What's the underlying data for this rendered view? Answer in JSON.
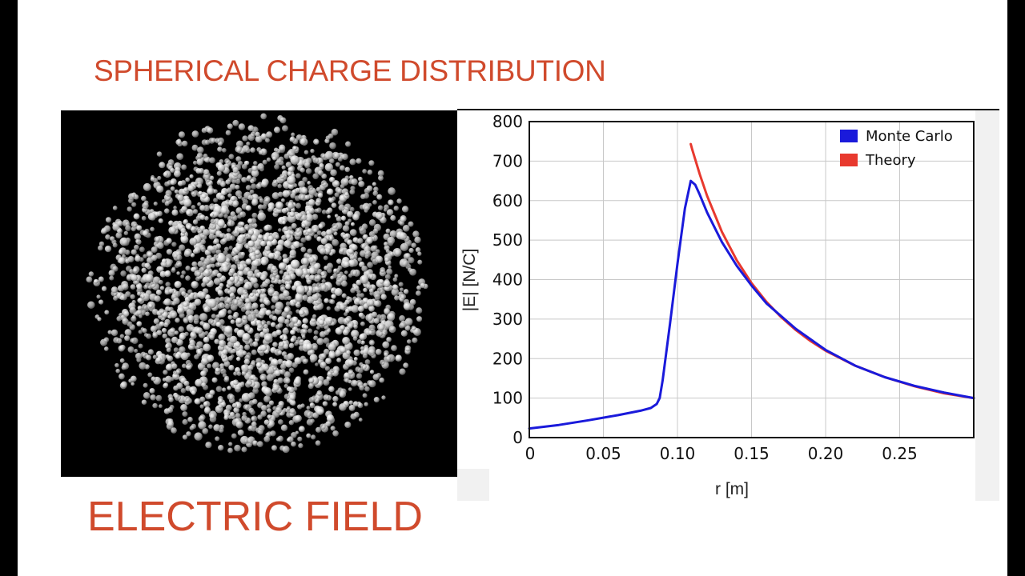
{
  "slide": {
    "title_top": "SPHERICAL CHARGE DISTRIBUTION",
    "title_bottom": "ELECTRIC FIELD"
  },
  "colors": {
    "title": "#d04a2c",
    "monte_carlo": "#1a1adb",
    "theory": "#e8392e",
    "sphere_background": "#000000",
    "particle": "#e6e6e6"
  },
  "chart_data": {
    "type": "line",
    "title": "",
    "xlabel": "r [m]",
    "ylabel": "|E| [N/C]",
    "xlim": [
      0,
      0.3
    ],
    "ylim": [
      0,
      800
    ],
    "x_ticks": [
      {
        "value": 0,
        "label": "0"
      },
      {
        "value": 0.05,
        "label": "0.05"
      },
      {
        "value": 0.1,
        "label": "0.10"
      },
      {
        "value": 0.15,
        "label": "0.15"
      },
      {
        "value": 0.2,
        "label": "0.20"
      },
      {
        "value": 0.25,
        "label": "0.25"
      }
    ],
    "y_ticks": [
      {
        "value": 0,
        "label": "0"
      },
      {
        "value": 100,
        "label": "100"
      },
      {
        "value": 200,
        "label": "200"
      },
      {
        "value": 300,
        "label": "300"
      },
      {
        "value": 400,
        "label": "400"
      },
      {
        "value": 500,
        "label": "500"
      },
      {
        "value": 600,
        "label": "600"
      },
      {
        "value": 700,
        "label": "700"
      },
      {
        "value": 800,
        "label": "800"
      }
    ],
    "grid": true,
    "legend_position": "top-right",
    "series": [
      {
        "name": "Monte Carlo",
        "color": "#1a1adb",
        "points": [
          [
            0,
            23
          ],
          [
            0.02,
            32
          ],
          [
            0.04,
            44
          ],
          [
            0.06,
            57
          ],
          [
            0.075,
            68
          ],
          [
            0.082,
            75
          ],
          [
            0.086,
            85
          ],
          [
            0.088,
            100
          ],
          [
            0.09,
            145
          ],
          [
            0.095,
            290
          ],
          [
            0.1,
            440
          ],
          [
            0.105,
            580
          ],
          [
            0.109,
            650
          ],
          [
            0.112,
            640
          ],
          [
            0.115,
            615
          ],
          [
            0.12,
            570
          ],
          [
            0.13,
            495
          ],
          [
            0.14,
            435
          ],
          [
            0.15,
            385
          ],
          [
            0.16,
            340
          ],
          [
            0.18,
            275
          ],
          [
            0.2,
            222
          ],
          [
            0.22,
            182
          ],
          [
            0.24,
            153
          ],
          [
            0.26,
            131
          ],
          [
            0.28,
            114
          ],
          [
            0.3,
            100
          ]
        ]
      },
      {
        "name": "Theory",
        "color": "#e8392e",
        "points": [
          [
            0.109,
            743
          ],
          [
            0.11,
            729
          ],
          [
            0.115,
            667
          ],
          [
            0.12,
            612
          ],
          [
            0.13,
            521
          ],
          [
            0.14,
            449
          ],
          [
            0.15,
            391
          ],
          [
            0.16,
            344
          ],
          [
            0.17,
            305
          ],
          [
            0.18,
            272
          ],
          [
            0.19,
            244
          ],
          [
            0.2,
            220
          ],
          [
            0.22,
            182
          ],
          [
            0.24,
            153
          ],
          [
            0.26,
            130
          ],
          [
            0.28,
            112
          ],
          [
            0.3,
            100
          ]
        ]
      }
    ]
  }
}
